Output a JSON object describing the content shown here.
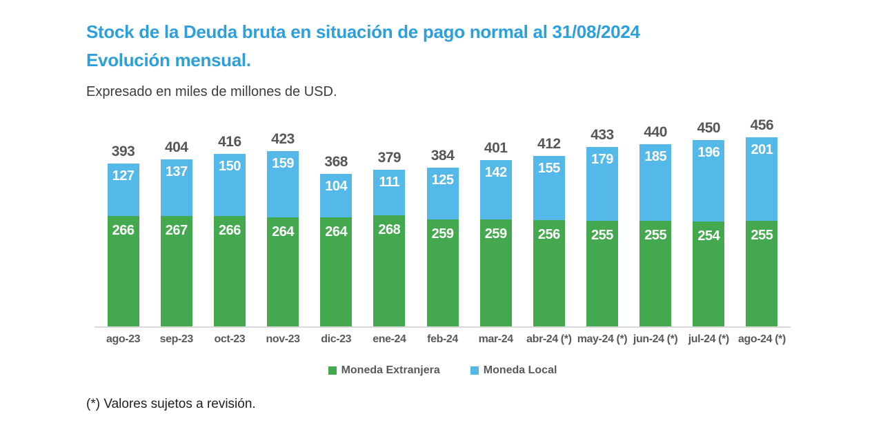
{
  "header": {
    "title_line1": "Stock de la Deuda bruta en situación de pago normal al 31/08/2024",
    "title_line2": "Evolución mensual.",
    "subtitle": "Expresado en miles de millones de USD."
  },
  "chart_data": {
    "type": "bar",
    "stacked": true,
    "categories": [
      "ago-23",
      "sep-23",
      "oct-23",
      "nov-23",
      "dic-23",
      "ene-24",
      "feb-24",
      "mar-24",
      "abr-24 (*)",
      "may-24 (*)",
      "jun-24 (*)",
      "jul-24 (*)",
      "ago-24 (*)"
    ],
    "series": [
      {
        "name": "Moneda Extranjera",
        "color": "#44A84F",
        "values": [
          266,
          267,
          266,
          264,
          264,
          268,
          259,
          259,
          256,
          255,
          255,
          254,
          255
        ]
      },
      {
        "name": "Moneda Local",
        "color": "#54B8E8",
        "values": [
          127,
          137,
          150,
          159,
          104,
          111,
          125,
          142,
          155,
          179,
          185,
          196,
          201
        ]
      }
    ],
    "totals": [
      393,
      404,
      416,
      423,
      368,
      379,
      384,
      401,
      412,
      433,
      440,
      450,
      456
    ],
    "title": "Stock de la Deuda bruta en situación de pago normal al 31/08/2024 Evolución mensual.",
    "xlabel": "",
    "ylabel": "",
    "ylim": [
      0,
      480
    ],
    "grid": false,
    "legend_position": "bottom",
    "value_labels": "inside-top-white, totals-above-gray"
  },
  "legend": {
    "items": [
      {
        "label": "Moneda Extranjera",
        "color": "#44A84F"
      },
      {
        "label": "Moneda Local",
        "color": "#54B8E8"
      }
    ]
  },
  "footnote": "(*) Valores sujetos a revisión.",
  "colors": {
    "title_blue": "#2D9FDB",
    "bar_green": "#44A84F",
    "bar_blue": "#54B8E8",
    "label_gray": "#58595B",
    "baseline_gray": "#D9D9D9"
  }
}
